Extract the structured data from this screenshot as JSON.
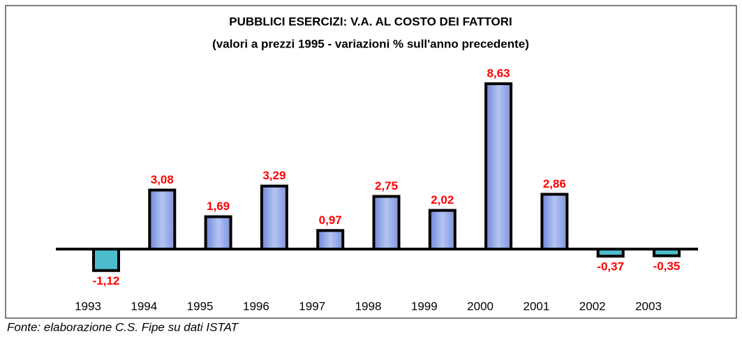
{
  "chart_data": {
    "type": "bar",
    "title": "PUBBLICI ESERCIZI: V.A. AL COSTO DEI FATTORI",
    "subtitle": "(valori a prezzi 1995 - variazioni % sull'anno precedente)",
    "categories": [
      "1993",
      "1994",
      "1995",
      "1996",
      "1997",
      "1998",
      "1999",
      "2000",
      "2001",
      "2002",
      "2003"
    ],
    "values": [
      -1.12,
      3.08,
      1.69,
      3.29,
      0.97,
      2.75,
      2.02,
      8.63,
      2.86,
      -0.37,
      -0.35
    ],
    "value_labels": [
      "-1,12",
      "3,08",
      "1,69",
      "3,29",
      "0,97",
      "2,75",
      "2,02",
      "8,63",
      "2,86",
      "-0,37",
      "-0,35"
    ],
    "color": "#94a8ec",
    "negative_color": "#4cbccc",
    "source": "Fonte: elaborazione C.S. Fipe su dati ISTAT"
  }
}
